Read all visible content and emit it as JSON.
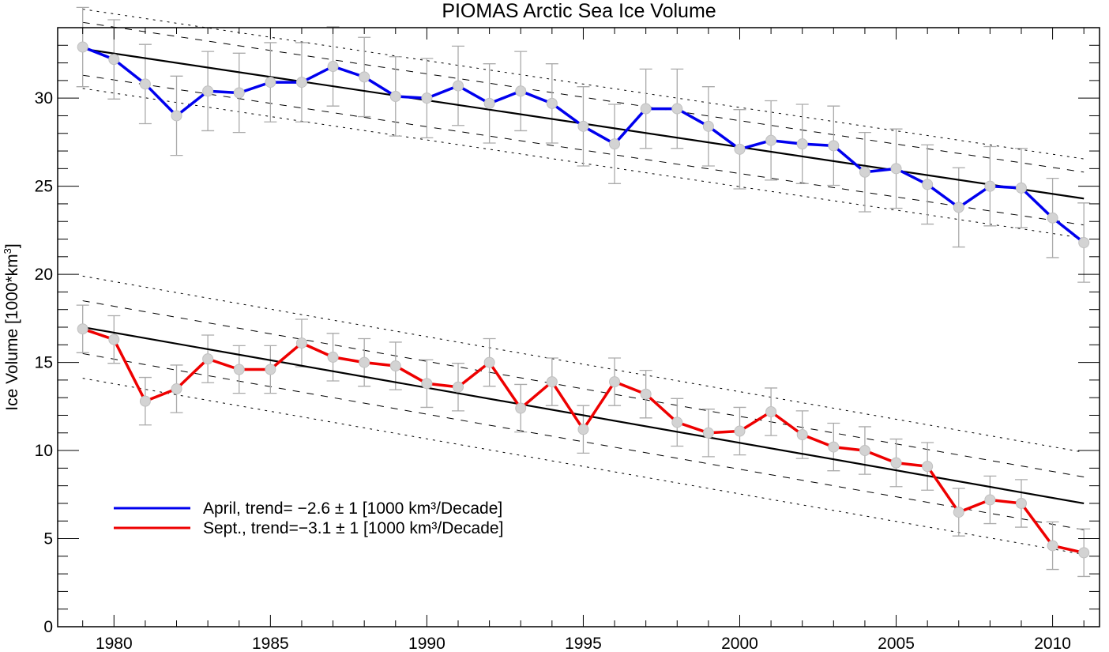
{
  "chart_data": {
    "type": "line",
    "title": "PIOMAS Arctic Sea Ice Volume",
    "xlabel": "",
    "ylabel": "Ice Volume [1000*km",
    "ylabel_superscript": "3",
    "ylabel_suffix": "]",
    "xlim": [
      1978.2,
      2011.5
    ],
    "ylim": [
      0,
      34
    ],
    "xticks": [
      1980,
      1985,
      1990,
      1995,
      2000,
      2005,
      2010
    ],
    "xtick_labels": [
      "1980",
      "1985",
      "1990",
      "1995",
      "2000",
      "2005",
      "2010"
    ],
    "yticks": [
      0,
      5,
      10,
      15,
      20,
      25,
      30
    ],
    "ytick_labels": [
      "0",
      "5",
      "10",
      "15",
      "20",
      "25",
      "30"
    ],
    "grid": false,
    "legend_position": "bottom-left",
    "x": [
      1979,
      1980,
      1981,
      1982,
      1983,
      1984,
      1985,
      1986,
      1987,
      1988,
      1989,
      1990,
      1991,
      1992,
      1993,
      1994,
      1995,
      1996,
      1997,
      1998,
      1999,
      2000,
      2001,
      2002,
      2003,
      2004,
      2005,
      2006,
      2007,
      2008,
      2009,
      2010,
      2011
    ],
    "series": [
      {
        "name": "April",
        "legend": "April, trend= −2.6 ± 1 [1000 km³/Decade]",
        "color": "#0000ee",
        "values": [
          32.9,
          32.2,
          30.8,
          29.0,
          30.4,
          30.3,
          30.9,
          30.9,
          31.8,
          31.2,
          30.1,
          30.0,
          30.7,
          29.7,
          30.4,
          29.7,
          28.4,
          27.4,
          29.4,
          29.4,
          28.4,
          27.1,
          27.6,
          27.4,
          27.3,
          25.8,
          26.0,
          25.1,
          23.8,
          25.0,
          24.9,
          23.2,
          21.8
        ],
        "error": 2.25,
        "trend": {
          "start": 32.8,
          "end": 24.3,
          "sigma1": 1.5,
          "sigma2": 2.25
        },
        "trend_per_decade": -2.6,
        "trend_uncertainty": 1
      },
      {
        "name": "Sept.",
        "legend": "Sept., trend=−3.1 ± 1 [1000 km³/Decade]",
        "color": "#ee0000",
        "values": [
          16.9,
          16.3,
          12.8,
          13.5,
          15.2,
          14.6,
          14.6,
          16.1,
          15.3,
          15.0,
          14.8,
          13.8,
          13.6,
          15.0,
          12.4,
          13.9,
          11.2,
          13.9,
          13.2,
          11.6,
          11.0,
          11.1,
          12.2,
          10.9,
          10.2,
          10.0,
          9.3,
          9.1,
          6.5,
          7.2,
          7.0,
          4.6,
          4.2
        ],
        "error": 1.35,
        "trend": {
          "start": 17.0,
          "end": 7.0,
          "sigma1": 1.5,
          "sigma2": 2.9
        },
        "trend_per_decade": -3.1,
        "trend_uncertainty": 1
      }
    ],
    "colors": {
      "marker_fill": "#d3d3d3",
      "error_bar": "#aaaaaa",
      "trend_line": "#000000",
      "axis": "#000000"
    }
  }
}
